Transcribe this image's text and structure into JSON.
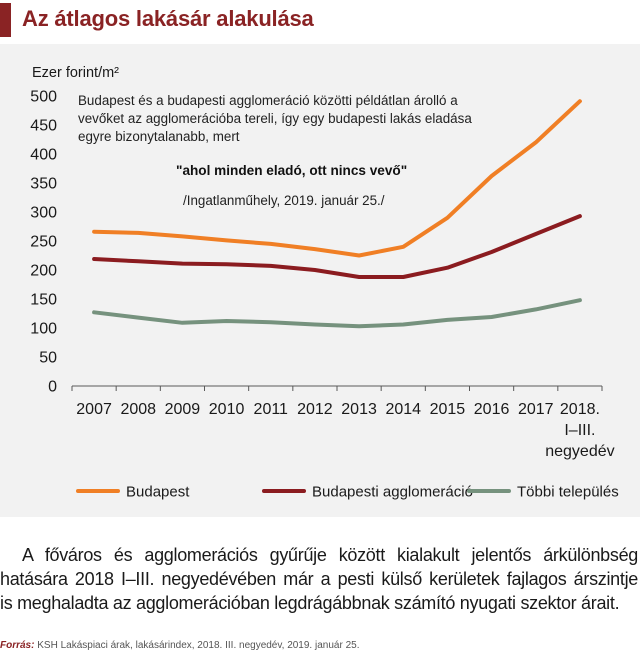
{
  "header": {
    "title": "Az átlagos lakásár alakulása",
    "accent_color": "#8a2324"
  },
  "annotation": {
    "lines": [
      "Budapest és a budapesti agglomeráció közötti példátlan árolló a",
      "vevőket az agglomerációba tereli, így egy budapesti lakás eladása",
      "egyre bizonytalanabb, mert"
    ],
    "quote": "\"ahol minden eladó, ott nincs vevő\"",
    "citation": "/Ingatlanműhely, 2019. január 25./"
  },
  "chart_data": {
    "type": "line",
    "ylabel": "Ezer forint/m²",
    "ylim": [
      0,
      500
    ],
    "yticks": [
      0,
      50,
      100,
      150,
      200,
      250,
      300,
      350,
      400,
      450,
      500
    ],
    "grid": false,
    "legend_position": "bottom",
    "categories": [
      "2007",
      "2008",
      "2009",
      "2010",
      "2011",
      "2012",
      "2013",
      "2014",
      "2015",
      "2016",
      "2017",
      "2018. I–III. negyedév"
    ],
    "category_lines": [
      [
        "2007"
      ],
      [
        "2008"
      ],
      [
        "2009"
      ],
      [
        "2010"
      ],
      [
        "2011"
      ],
      [
        "2012"
      ],
      [
        "2013"
      ],
      [
        "2014"
      ],
      [
        "2015"
      ],
      [
        "2016"
      ],
      [
        "2017"
      ],
      [
        "2018.",
        "I–III.",
        "negyedév"
      ]
    ],
    "series": [
      {
        "name": "Budapest",
        "color": "#f07f25",
        "values": [
          266,
          264,
          258,
          251,
          245,
          236,
          225,
          240,
          290,
          362,
          420,
          491
        ]
      },
      {
        "name": "Budapesti agglomeráció",
        "color": "#8b1c20",
        "values": [
          219,
          215,
          211,
          210,
          207,
          200,
          188,
          188,
          204,
          231,
          262,
          293
        ]
      },
      {
        "name": "Többi település",
        "color": "#76927e",
        "values": [
          127,
          118,
          109,
          112,
          110,
          106,
          103,
          106,
          114,
          119,
          132,
          148
        ]
      }
    ]
  },
  "body": {
    "lines": [
      "A főváros és agglomerációs gyűrűje között kialakult jelentős árkülönbség",
      "hatására 2018 I–III. negyedévében már a pesti külső kerületek fajlagos árszintje",
      "is meghaladta az agglomerációban legdrágábbnak számító nyugati szektor árait."
    ]
  },
  "source": {
    "label": "Forrás:",
    "text": " KSH Lakáspiaci árak, lakásárindex, 2018. III. negyedév, 2019. január 25."
  }
}
